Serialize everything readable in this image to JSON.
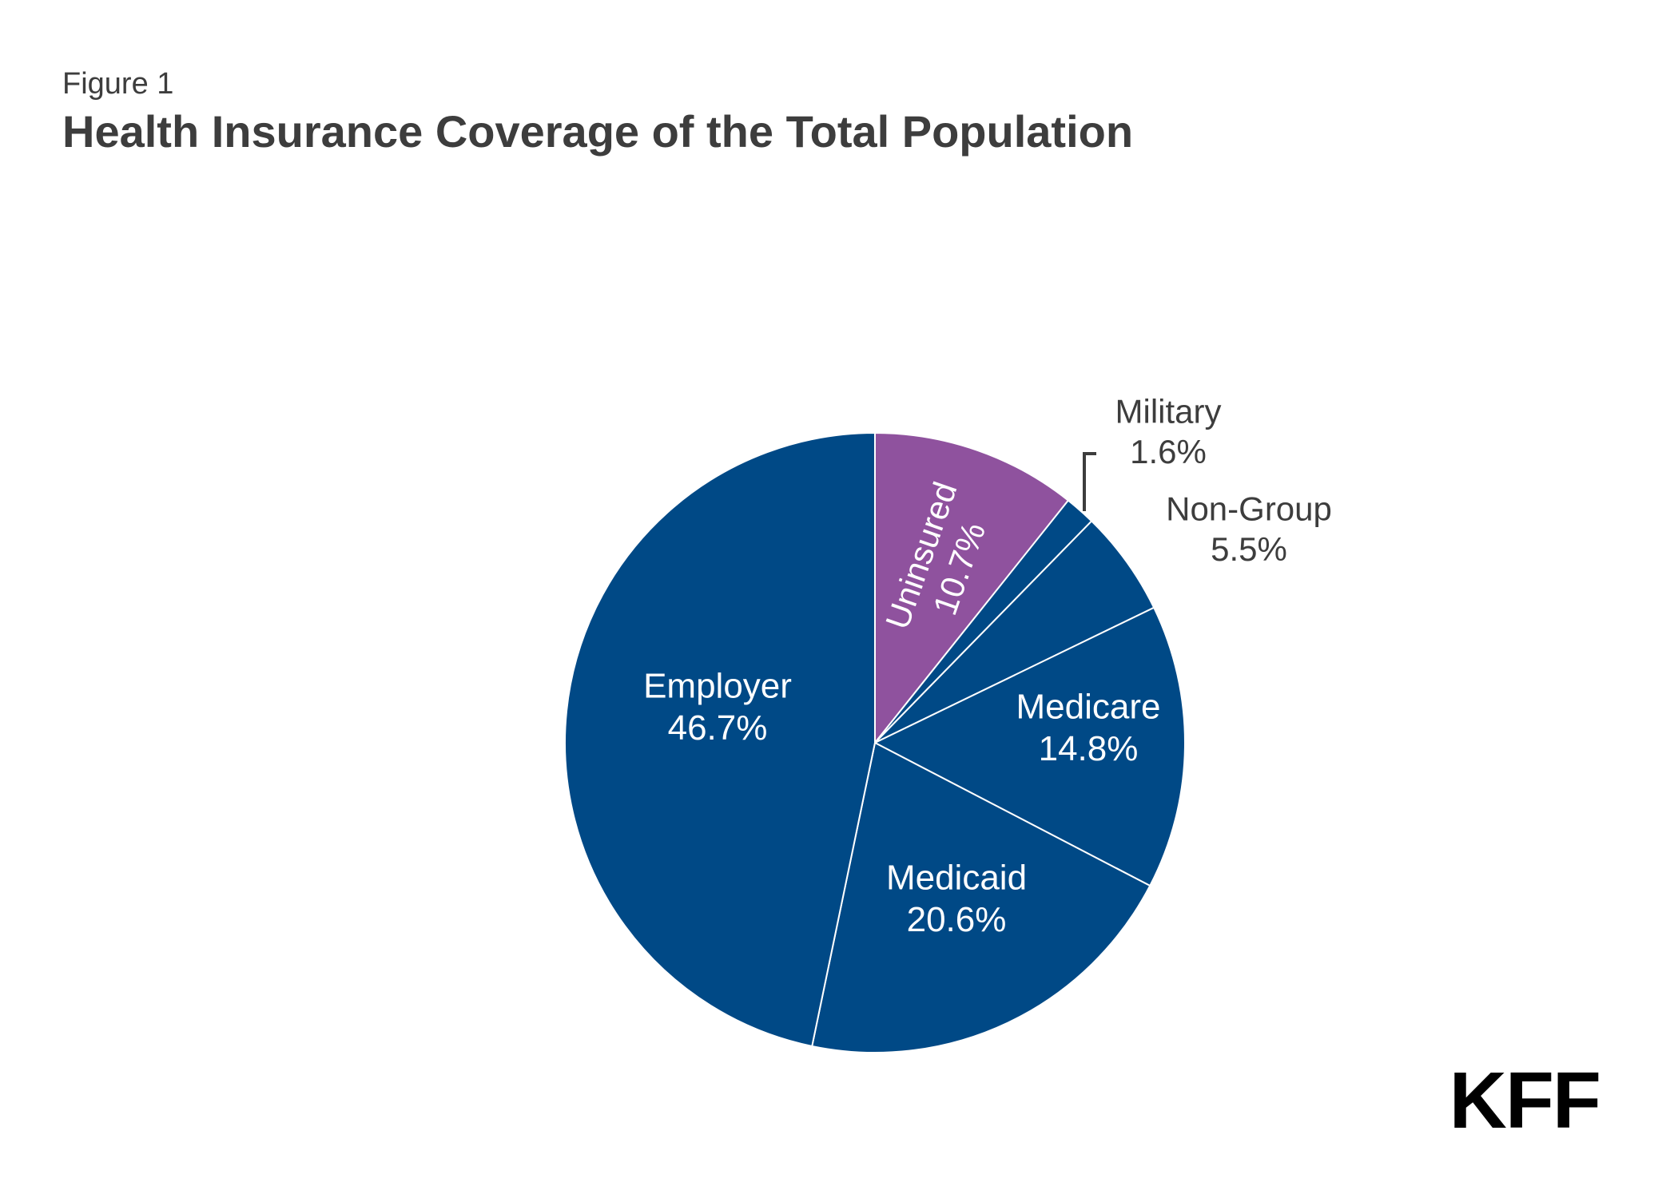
{
  "figure": {
    "label": "Figure 1",
    "title": "Health Insurance Coverage of the Total Population"
  },
  "logo": {
    "text": "KFF"
  },
  "colors": {
    "primary": "#004986",
    "uninsured": "#8f529e",
    "separator": "#ffffff",
    "label_dark": "#3d3d3d",
    "label_light": "#ffffff"
  },
  "chart_data": {
    "type": "pie",
    "title": "Health Insurance Coverage of the Total Population",
    "start": "12 o'clock",
    "direction": "clockwise",
    "slices": [
      {
        "name": "Uninsured",
        "value": 10.7,
        "label": "10.7%",
        "color": "#8f529e",
        "label_position": "inside"
      },
      {
        "name": "Military",
        "value": 1.6,
        "label": "1.6%",
        "color": "#004986",
        "label_position": "outside"
      },
      {
        "name": "Non-Group",
        "value": 5.5,
        "label": "5.5%",
        "color": "#004986",
        "label_position": "outside"
      },
      {
        "name": "Medicare",
        "value": 14.8,
        "label": "14.8%",
        "color": "#004986",
        "label_position": "inside"
      },
      {
        "name": "Medicaid",
        "value": 20.6,
        "label": "20.6%",
        "color": "#004986",
        "label_position": "inside"
      },
      {
        "name": "Employer",
        "value": 46.7,
        "label": "46.7%",
        "color": "#004986",
        "label_position": "inside"
      }
    ]
  }
}
